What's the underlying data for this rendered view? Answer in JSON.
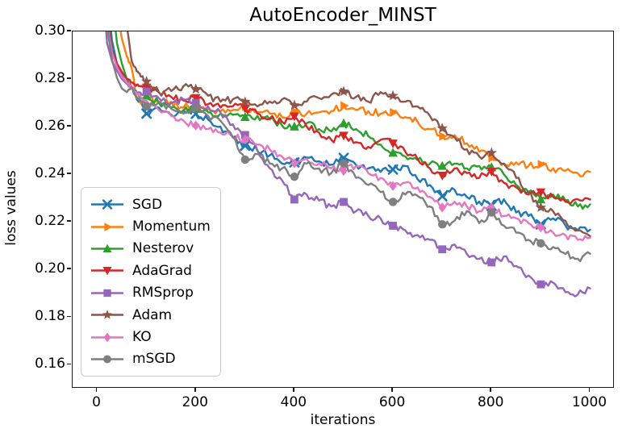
{
  "chart_data": {
    "type": "line",
    "title": "AutoEncoder_MINST",
    "xlabel": "iterations",
    "ylabel": "loss values",
    "xlim": [
      -50,
      1050
    ],
    "ylim": [
      0.15,
      0.3
    ],
    "xticks": [
      0,
      200,
      400,
      600,
      800,
      1000
    ],
    "yticks": [
      0.16,
      0.18,
      0.2,
      0.22,
      0.24,
      0.26,
      0.28,
      0.3
    ],
    "grid": false,
    "legend_position": "center left",
    "marker_every": 100,
    "x": [
      0,
      10,
      20,
      30,
      40,
      50,
      60,
      70,
      80,
      90,
      100,
      125,
      150,
      175,
      200,
      225,
      250,
      275,
      300,
      325,
      350,
      375,
      400,
      425,
      450,
      475,
      500,
      525,
      550,
      575,
      600,
      625,
      650,
      675,
      700,
      725,
      750,
      775,
      800,
      825,
      850,
      875,
      900,
      925,
      950,
      975,
      1000
    ],
    "series": [
      {
        "name": "SGD",
        "color": "#1f77b4",
        "marker": "x",
        "values": [
          0.6,
          0.42,
          0.315,
          0.296,
          0.2865,
          0.2815,
          0.278,
          0.2765,
          0.2715,
          0.27,
          0.2655,
          0.268,
          0.265,
          0.267,
          0.2654,
          0.263,
          0.26,
          0.2555,
          0.252,
          0.25,
          0.248,
          0.2445,
          0.245,
          0.247,
          0.2455,
          0.244,
          0.2469,
          0.244,
          0.2425,
          0.241,
          0.242,
          0.2435,
          0.238,
          0.2355,
          0.2308,
          0.2335,
          0.2305,
          0.2285,
          0.2268,
          0.2295,
          0.224,
          0.2225,
          0.219,
          0.2215,
          0.2185,
          0.2165,
          0.2167
        ]
      },
      {
        "name": "Momentum",
        "color": "#ff7f0e",
        "marker": ">",
        "values": [
          0.68,
          0.58,
          0.46,
          0.35,
          0.308,
          0.297,
          0.2895,
          0.2845,
          0.272,
          0.27,
          0.2735,
          0.27,
          0.2705,
          0.268,
          0.269,
          0.2675,
          0.2665,
          0.267,
          0.2685,
          0.266,
          0.2655,
          0.264,
          0.2664,
          0.2655,
          0.266,
          0.2665,
          0.2688,
          0.267,
          0.2665,
          0.2655,
          0.266,
          0.264,
          0.262,
          0.259,
          0.256,
          0.2565,
          0.253,
          0.2495,
          0.2469,
          0.2445,
          0.245,
          0.2435,
          0.2442,
          0.2425,
          0.2415,
          0.2405,
          0.241
        ]
      },
      {
        "name": "Nesterov",
        "color": "#2ca02c",
        "marker": "^",
        "values": [
          0.65,
          0.52,
          0.4,
          0.315,
          0.295,
          0.2865,
          0.28,
          0.2765,
          0.2745,
          0.272,
          0.273,
          0.27,
          0.268,
          0.2665,
          0.2674,
          0.266,
          0.2655,
          0.265,
          0.264,
          0.2645,
          0.263,
          0.2605,
          0.26,
          0.2615,
          0.259,
          0.258,
          0.2614,
          0.259,
          0.256,
          0.2525,
          0.249,
          0.2475,
          0.246,
          0.2445,
          0.2435,
          0.2445,
          0.2425,
          0.2435,
          0.2429,
          0.24,
          0.2355,
          0.2325,
          0.2294,
          0.2315,
          0.229,
          0.2265,
          0.2274
        ]
      },
      {
        "name": "AdaGrad",
        "color": "#d62728",
        "marker": "v",
        "values": [
          0.6,
          0.4,
          0.305,
          0.292,
          0.2865,
          0.283,
          0.28,
          0.2785,
          0.2775,
          0.2771,
          0.2765,
          0.2745,
          0.2725,
          0.271,
          0.2721,
          0.2695,
          0.268,
          0.2685,
          0.2677,
          0.2655,
          0.2635,
          0.262,
          0.2644,
          0.26,
          0.2575,
          0.2545,
          0.2563,
          0.2535,
          0.2515,
          0.2545,
          0.253,
          0.2495,
          0.2465,
          0.2425,
          0.2395,
          0.2425,
          0.2405,
          0.2385,
          0.2412,
          0.2365,
          0.2345,
          0.2315,
          0.2325,
          0.2305,
          0.2285,
          0.2295,
          0.2294
        ]
      },
      {
        "name": "RMSprop",
        "color": "#9467bd",
        "marker": "s",
        "values": [
          0.6,
          0.32,
          0.295,
          0.2875,
          0.2835,
          0.28,
          0.278,
          0.2765,
          0.2745,
          0.2735,
          0.2748,
          0.272,
          0.27,
          0.2715,
          0.27,
          0.2685,
          0.266,
          0.261,
          0.2565,
          0.25,
          0.2425,
          0.2375,
          0.2294,
          0.2315,
          0.229,
          0.2265,
          0.2284,
          0.2245,
          0.2225,
          0.2215,
          0.2184,
          0.2165,
          0.2145,
          0.2125,
          0.2085,
          0.2105,
          0.2065,
          0.2045,
          0.203,
          0.2055,
          0.2015,
          0.1975,
          0.1938,
          0.1945,
          0.1905,
          0.1895,
          0.1921
        ]
      },
      {
        "name": "Adam",
        "color": "#8c564b",
        "marker": "*",
        "values": [
          0.7,
          0.62,
          0.52,
          0.42,
          0.345,
          0.315,
          0.302,
          0.2875,
          0.2832,
          0.281,
          0.279,
          0.2745,
          0.275,
          0.277,
          0.2758,
          0.273,
          0.2705,
          0.2715,
          0.2704,
          0.2685,
          0.2705,
          0.2715,
          0.269,
          0.2705,
          0.272,
          0.2735,
          0.2748,
          0.2725,
          0.2705,
          0.2745,
          0.273,
          0.2705,
          0.2685,
          0.2645,
          0.2593,
          0.2555,
          0.2505,
          0.2475,
          0.249,
          0.2445,
          0.2385,
          0.2325,
          0.2261,
          0.2245,
          0.2205,
          0.2165,
          0.214
        ]
      },
      {
        "name": "KO",
        "color": "#e377c2",
        "marker": "D",
        "values": [
          0.55,
          0.36,
          0.303,
          0.291,
          0.285,
          0.281,
          0.2785,
          0.276,
          0.274,
          0.272,
          0.2695,
          0.267,
          0.2645,
          0.2625,
          0.2605,
          0.259,
          0.2575,
          0.256,
          0.2546,
          0.2525,
          0.2505,
          0.2475,
          0.2446,
          0.2465,
          0.2445,
          0.2425,
          0.2415,
          0.2435,
          0.2405,
          0.2385,
          0.2351,
          0.2365,
          0.2345,
          0.2305,
          0.2261,
          0.2285,
          0.2265,
          0.2245,
          0.2261,
          0.2225,
          0.2215,
          0.2195,
          0.2177,
          0.2155,
          0.2145,
          0.2125,
          0.2133
        ]
      },
      {
        "name": "mSGD",
        "color": "#7f7f7f",
        "marker": "o",
        "values": [
          0.55,
          0.37,
          0.302,
          0.288,
          0.2805,
          0.276,
          0.2745,
          0.2765,
          0.2725,
          0.2705,
          0.2685,
          0.2705,
          0.2675,
          0.2655,
          0.268,
          0.2645,
          0.2625,
          0.2555,
          0.2462,
          0.2485,
          0.2445,
          0.2425,
          0.239,
          0.2445,
          0.2425,
          0.2405,
          0.2446,
          0.2385,
          0.2355,
          0.2325,
          0.2284,
          0.2315,
          0.231,
          0.2265,
          0.219,
          0.2205,
          0.2245,
          0.2195,
          0.224,
          0.2185,
          0.2155,
          0.2125,
          0.211,
          0.2095,
          0.2065,
          0.2045,
          0.2066
        ]
      }
    ]
  },
  "style": {
    "axis_color": "#1a1a1a",
    "text_color": "#000000",
    "legend_border": "#cccccc",
    "background": "#ffffff",
    "line_width": 2.4,
    "noise_amplitude": 0.0015
  }
}
